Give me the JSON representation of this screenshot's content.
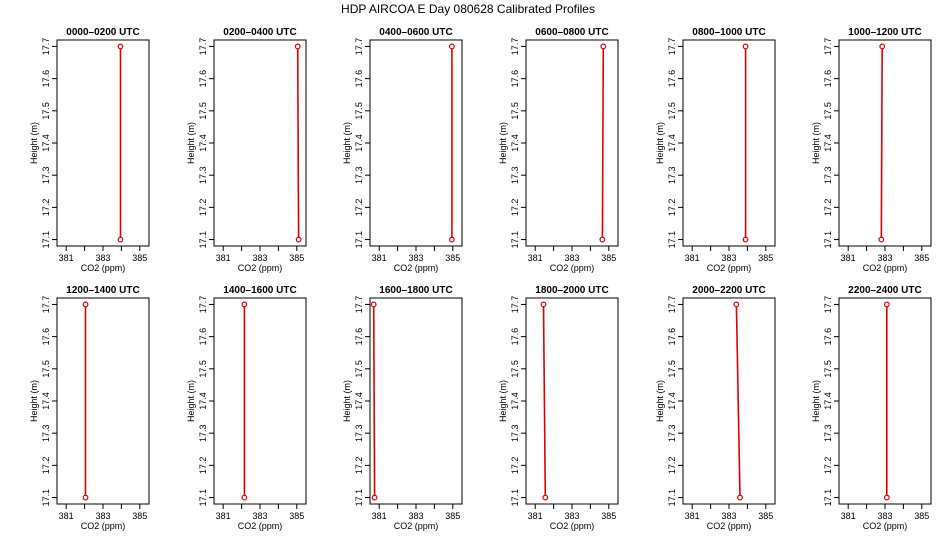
{
  "figure": {
    "title": "HDP AIRCOA E  Day 080628  Calibrated Profiles"
  },
  "colors": {
    "profile": "#dd0000",
    "axes": "#000000"
  },
  "chart_data": [
    {
      "type": "line",
      "title": "0000–0200 UTC",
      "xlabel": "CO2 (ppm)",
      "ylabel": "Height (m)",
      "xlim": [
        380.5,
        385.5
      ],
      "ylim": [
        17.08,
        17.72
      ],
      "xticks": [
        "381",
        "383",
        "385"
      ],
      "yticks": [
        "17.1",
        "17.2",
        "17.3",
        "17.4",
        "17.5",
        "17.6",
        "17.7"
      ],
      "x": [
        383.95,
        383.95
      ],
      "y": [
        17.1,
        17.7
      ]
    },
    {
      "type": "line",
      "title": "0200–0400 UTC",
      "xlabel": "CO2 (ppm)",
      "ylabel": "Height (m)",
      "xlim": [
        380.5,
        385.5
      ],
      "ylim": [
        17.08,
        17.72
      ],
      "xticks": [
        "381",
        "383",
        "385"
      ],
      "yticks": [
        "17.1",
        "17.2",
        "17.3",
        "17.4",
        "17.5",
        "17.6",
        "17.7"
      ],
      "x": [
        385.1,
        385.05
      ],
      "y": [
        17.1,
        17.7
      ]
    },
    {
      "type": "line",
      "title": "0400–0600 UTC",
      "xlabel": "CO2 (ppm)",
      "ylabel": "Height (m)",
      "xlim": [
        380.5,
        385.5
      ],
      "ylim": [
        17.08,
        17.72
      ],
      "xticks": [
        "381",
        "383",
        "385"
      ],
      "yticks": [
        "17.1",
        "17.2",
        "17.3",
        "17.4",
        "17.5",
        "17.6",
        "17.7"
      ],
      "x": [
        384.95,
        384.95
      ],
      "y": [
        17.1,
        17.7
      ]
    },
    {
      "type": "line",
      "title": "0600–0800 UTC",
      "xlabel": "CO2 (ppm)",
      "ylabel": "Height (m)",
      "xlim": [
        380.5,
        385.5
      ],
      "ylim": [
        17.08,
        17.72
      ],
      "xticks": [
        "381",
        "383",
        "385"
      ],
      "yticks": [
        "17.1",
        "17.2",
        "17.3",
        "17.4",
        "17.5",
        "17.6",
        "17.7"
      ],
      "x": [
        384.65,
        384.7
      ],
      "y": [
        17.1,
        17.7
      ]
    },
    {
      "type": "line",
      "title": "0800–1000 UTC",
      "xlabel": "CO2 (ppm)",
      "ylabel": "Height (m)",
      "xlim": [
        380.5,
        385.5
      ],
      "ylim": [
        17.08,
        17.72
      ],
      "xticks": [
        "381",
        "383",
        "385"
      ],
      "yticks": [
        "17.1",
        "17.2",
        "17.3",
        "17.4",
        "17.5",
        "17.6",
        "17.7"
      ],
      "x": [
        383.9,
        383.9
      ],
      "y": [
        17.1,
        17.7
      ]
    },
    {
      "type": "line",
      "title": "1000–1200 UTC",
      "xlabel": "CO2 (ppm)",
      "ylabel": "Height (m)",
      "xlim": [
        380.5,
        385.5
      ],
      "ylim": [
        17.08,
        17.72
      ],
      "xticks": [
        "381",
        "383",
        "385"
      ],
      "yticks": [
        "17.1",
        "17.2",
        "17.3",
        "17.4",
        "17.5",
        "17.6",
        "17.7"
      ],
      "x": [
        382.8,
        382.85
      ],
      "y": [
        17.1,
        17.7
      ]
    },
    {
      "type": "line",
      "title": "1200–1400 UTC",
      "xlabel": "CO2 (ppm)",
      "ylabel": "Height (m)",
      "xlim": [
        380.5,
        385.5
      ],
      "ylim": [
        17.08,
        17.72
      ],
      "xticks": [
        "381",
        "383",
        "385"
      ],
      "yticks": [
        "17.1",
        "17.2",
        "17.3",
        "17.4",
        "17.5",
        "17.6",
        "17.7"
      ],
      "x": [
        382.05,
        382.05
      ],
      "y": [
        17.1,
        17.7
      ]
    },
    {
      "type": "line",
      "title": "1400–1600 UTC",
      "xlabel": "CO2 (ppm)",
      "ylabel": "Height (m)",
      "xlim": [
        380.5,
        385.5
      ],
      "ylim": [
        17.08,
        17.72
      ],
      "xticks": [
        "381",
        "383",
        "385"
      ],
      "yticks": [
        "17.1",
        "17.2",
        "17.3",
        "17.4",
        "17.5",
        "17.6",
        "17.7"
      ],
      "x": [
        382.15,
        382.15
      ],
      "y": [
        17.1,
        17.7
      ]
    },
    {
      "type": "line",
      "title": "1600–1800 UTC",
      "xlabel": "CO2 (ppm)",
      "ylabel": "Height (m)",
      "xlim": [
        380.5,
        385.5
      ],
      "ylim": [
        17.08,
        17.72
      ],
      "xticks": [
        "381",
        "383",
        "385"
      ],
      "yticks": [
        "17.1",
        "17.2",
        "17.3",
        "17.4",
        "17.5",
        "17.6",
        "17.7"
      ],
      "x": [
        380.75,
        380.7
      ],
      "y": [
        17.1,
        17.7
      ]
    },
    {
      "type": "line",
      "title": "1800–2000 UTC",
      "xlabel": "CO2 (ppm)",
      "ylabel": "Height (m)",
      "xlim": [
        380.5,
        385.5
      ],
      "ylim": [
        17.08,
        17.72
      ],
      "xticks": [
        "381",
        "383",
        "385"
      ],
      "yticks": [
        "17.1",
        "17.2",
        "17.3",
        "17.4",
        "17.5",
        "17.6",
        "17.7"
      ],
      "x": [
        381.55,
        381.45
      ],
      "y": [
        17.1,
        17.7
      ]
    },
    {
      "type": "line",
      "title": "2000–2200 UTC",
      "xlabel": "CO2 (ppm)",
      "ylabel": "Height (m)",
      "xlim": [
        380.5,
        385.5
      ],
      "ylim": [
        17.08,
        17.72
      ],
      "xticks": [
        "381",
        "383",
        "385"
      ],
      "yticks": [
        "17.1",
        "17.2",
        "17.3",
        "17.4",
        "17.5",
        "17.6",
        "17.7"
      ],
      "x": [
        383.6,
        383.4
      ],
      "y": [
        17.1,
        17.7
      ]
    },
    {
      "type": "line",
      "title": "2200–2400 UTC",
      "xlabel": "CO2 (ppm)",
      "ylabel": "Height (m)",
      "xlim": [
        380.5,
        385.5
      ],
      "ylim": [
        17.08,
        17.72
      ],
      "xticks": [
        "381",
        "383",
        "385"
      ],
      "yticks": [
        "17.1",
        "17.2",
        "17.3",
        "17.4",
        "17.5",
        "17.6",
        "17.7"
      ],
      "x": [
        383.1,
        383.1
      ],
      "y": [
        17.1,
        17.7
      ]
    }
  ]
}
